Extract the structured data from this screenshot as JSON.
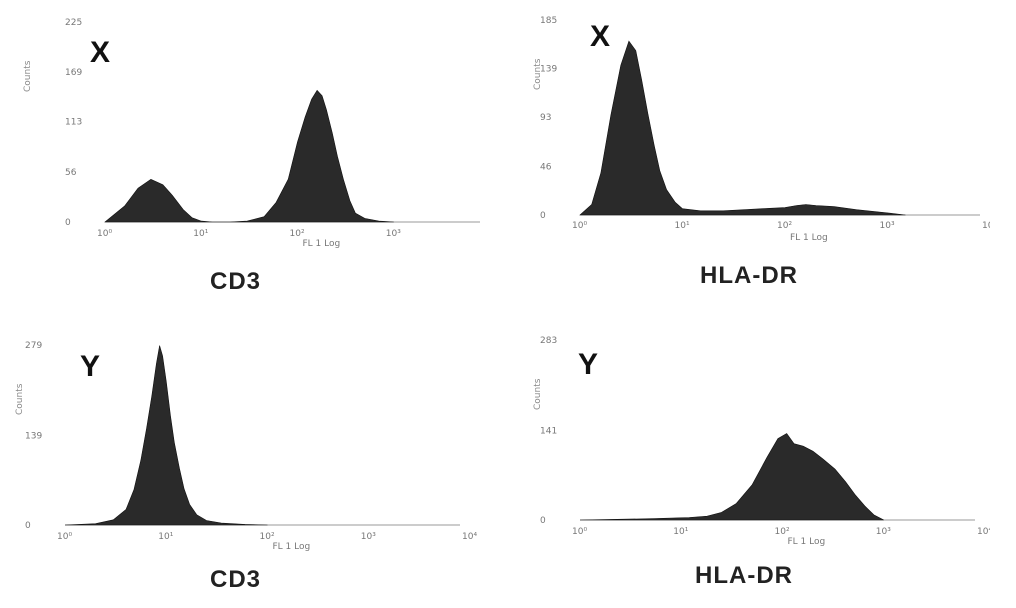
{
  "chart_data": [
    {
      "type": "area",
      "panel_label": "X",
      "marker_label": "CD3",
      "ylabel": "Counts",
      "xlabel": "FL 1 Log",
      "x_scale": "log",
      "xlim": [
        1,
        10000
      ],
      "ylim": [
        0,
        225
      ],
      "y_ticks": [
        0,
        56,
        113,
        169,
        225
      ],
      "x_ticks": [
        "10⁰",
        "10¹",
        "10²",
        "10³",
        "10⁴"
      ],
      "x": [
        1.0,
        1.6,
        2.2,
        3.0,
        4.0,
        5.0,
        6.5,
        8.0,
        10,
        13,
        16,
        20,
        30,
        45,
        60,
        80,
        100,
        120,
        140,
        160,
        180,
        200,
        230,
        260,
        300,
        350,
        400,
        500,
        700,
        1000
      ],
      "values": [
        0,
        18,
        38,
        48,
        42,
        30,
        14,
        5,
        1,
        0,
        0,
        0,
        1,
        6,
        22,
        48,
        90,
        118,
        138,
        148,
        142,
        126,
        100,
        74,
        48,
        24,
        10,
        4,
        1,
        0
      ]
    },
    {
      "type": "area",
      "panel_label": "X",
      "marker_label": "HLA-DR",
      "ylabel": "Counts",
      "xlabel": "FL 1 Log",
      "x_scale": "log",
      "xlim": [
        1,
        10000
      ],
      "ylim": [
        0,
        185
      ],
      "y_ticks": [
        0,
        46,
        93,
        139,
        185
      ],
      "x_ticks": [
        "10⁰",
        "10¹",
        "10²",
        "10³",
        "10⁴"
      ],
      "x": [
        1.0,
        1.3,
        1.6,
        2.0,
        2.5,
        3.0,
        3.5,
        4.0,
        4.6,
        5.3,
        6.0,
        7.0,
        8.5,
        10,
        15,
        25,
        40,
        60,
        100,
        130,
        160,
        200,
        300,
        500,
        1000,
        1500
      ],
      "values": [
        0,
        10,
        40,
        95,
        142,
        165,
        156,
        128,
        96,
        66,
        42,
        24,
        12,
        6,
        4,
        4,
        5,
        6,
        7,
        9,
        10,
        9,
        8,
        5,
        2,
        0
      ]
    },
    {
      "type": "area",
      "panel_label": "Y",
      "marker_label": "CD3",
      "ylabel": "Counts",
      "xlabel": "FL 1 Log",
      "x_scale": "log",
      "xlim": [
        1,
        10000
      ],
      "ylim": [
        0,
        279
      ],
      "y_ticks": [
        0,
        139,
        279
      ],
      "x_ticks": [
        "10⁰",
        "10¹",
        "10²",
        "10³",
        "10⁴"
      ],
      "x": [
        1.0,
        2.0,
        3.0,
        4.0,
        4.8,
        5.6,
        6.4,
        7.2,
        8.0,
        8.6,
        9.2,
        10,
        11,
        12,
        13.5,
        15,
        17,
        20,
        25,
        35,
        60,
        100
      ],
      "values": [
        0,
        2,
        8,
        24,
        55,
        100,
        150,
        200,
        250,
        278,
        262,
        222,
        170,
        128,
        88,
        56,
        32,
        16,
        7,
        3,
        1,
        0
      ]
    },
    {
      "type": "area",
      "panel_label": "Y",
      "marker_label": "HLA-DR",
      "ylabel": "Counts",
      "xlabel": "FL 1 Log",
      "x_scale": "log",
      "xlim": [
        1,
        10000
      ],
      "ylim": [
        0,
        283
      ],
      "y_ticks": [
        0,
        141,
        283
      ],
      "x_ticks": [
        "10⁰",
        "10¹",
        "10²",
        "10³",
        "10⁴"
      ],
      "x": [
        1.0,
        5,
        12,
        18,
        25,
        35,
        50,
        70,
        90,
        110,
        130,
        160,
        200,
        250,
        330,
        420,
        520,
        650,
        800,
        1000
      ],
      "values": [
        0,
        2,
        4,
        6,
        12,
        26,
        55,
        98,
        128,
        136,
        120,
        116,
        108,
        96,
        80,
        60,
        40,
        22,
        8,
        0
      ]
    }
  ]
}
